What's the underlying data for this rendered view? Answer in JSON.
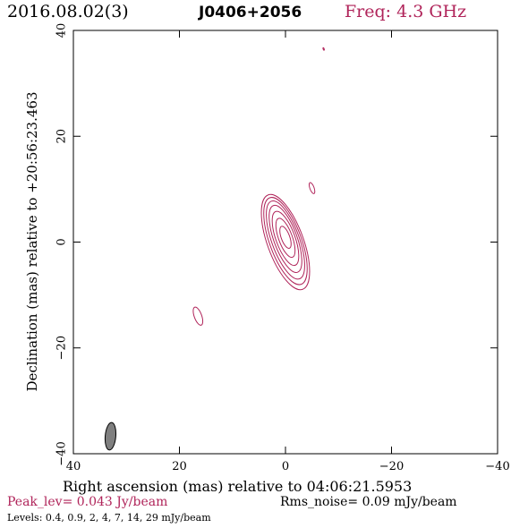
{
  "header": {
    "date": "2016.08.02(3)",
    "source": "J0406+2056",
    "freq": "Freq: 4.3 GHz"
  },
  "footer": {
    "peak": "Peak_lev=  0.043 Jy/beam",
    "rms": "Rms_noise= 0.09 mJy/beam",
    "levels": "Levels: 0.4,  0.9,    2,    4,    7,   14,   29  mJy/beam"
  },
  "colors": {
    "accent": "#b0245a",
    "beam_fill": "#7f7f7f"
  },
  "chart_data": {
    "type": "contour",
    "xlabel": "Right ascension (mas) relative to 04:06:21.5953",
    "ylabel": "Declination (mas) relative to +20:56:23.463",
    "xlim": [
      40,
      -40
    ],
    "ylim": [
      -40,
      40
    ],
    "xticks": [
      40,
      20,
      0,
      -20,
      -40
    ],
    "yticks": [
      -40,
      -20,
      0,
      20,
      40
    ],
    "contour_levels_mJy_per_beam": [
      0.4,
      0.9,
      2,
      4,
      7,
      14,
      29
    ],
    "core_contours": [
      {
        "level": 0.4,
        "center": [
          0,
          0
        ],
        "semi_major": 9.5,
        "semi_minor": 3.4,
        "pa_deg": -20
      },
      {
        "level": 0.9,
        "center": [
          0,
          0.2
        ],
        "semi_major": 8.7,
        "semi_minor": 3.0,
        "pa_deg": -20
      },
      {
        "level": 2,
        "center": [
          0,
          0.4
        ],
        "semi_major": 7.8,
        "semi_minor": 2.6,
        "pa_deg": -20
      },
      {
        "level": 4,
        "center": [
          0,
          0.6
        ],
        "semi_major": 6.7,
        "semi_minor": 2.2,
        "pa_deg": -20
      },
      {
        "level": 7,
        "center": [
          0,
          0.7
        ],
        "semi_major": 5.4,
        "semi_minor": 1.8,
        "pa_deg": -20
      },
      {
        "level": 14,
        "center": [
          0,
          0.8
        ],
        "semi_major": 3.9,
        "semi_minor": 1.3,
        "pa_deg": -20
      },
      {
        "level": 29,
        "center": [
          0,
          0.9
        ],
        "semi_major": 2.2,
        "semi_minor": 0.8,
        "pa_deg": -20
      }
    ],
    "extra_components": [
      {
        "level": 0.4,
        "center": [
          16.5,
          -14
        ],
        "semi_major": 1.8,
        "semi_minor": 0.7,
        "pa_deg": -20
      },
      {
        "level": 0.4,
        "center": [
          -5,
          10.2
        ],
        "semi_major": 1.1,
        "semi_minor": 0.4,
        "pa_deg": -20
      },
      {
        "level": 0.4,
        "center": [
          -7.2,
          36.5
        ],
        "semi_major": 0.25,
        "semi_minor": 0.1,
        "pa_deg": -20
      }
    ],
    "beam": {
      "center": [
        33,
        -36.7
      ],
      "semi_major": 2.6,
      "semi_minor": 1.0,
      "pa_deg": 5
    }
  }
}
